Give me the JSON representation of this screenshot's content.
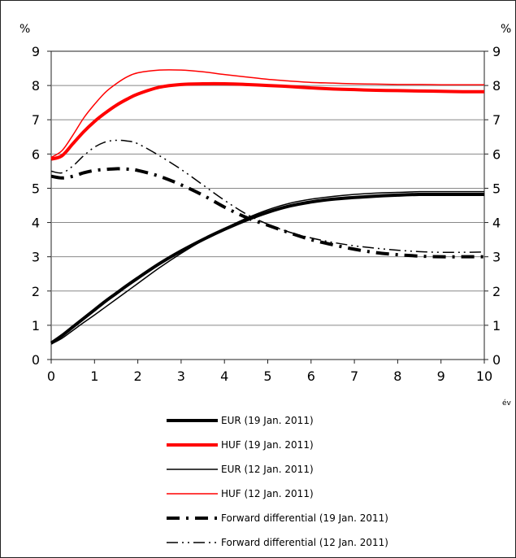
{
  "chart_data": {
    "type": "line",
    "y_unit_left": "%",
    "y_unit_right": "%",
    "x_unit": "év",
    "xlim": [
      0,
      10
    ],
    "ylim": [
      0,
      9
    ],
    "x_ticks": [
      "0",
      "1",
      "2",
      "3",
      "4",
      "5",
      "6",
      "7",
      "8",
      "9",
      "10"
    ],
    "y_ticks": [
      "0",
      "1",
      "2",
      "3",
      "4",
      "5",
      "6",
      "7",
      "8",
      "9"
    ],
    "grid": "horizontal",
    "legend_position": "bottom",
    "x": [
      0,
      0.25,
      0.5,
      0.75,
      1,
      1.25,
      1.5,
      1.75,
      2,
      2.5,
      3,
      3.5,
      4,
      4.5,
      5,
      5.5,
      6,
      6.5,
      7,
      7.5,
      8,
      8.5,
      9,
      9.5,
      10
    ],
    "series": [
      {
        "name": "EUR (19 Jan. 2011)",
        "color": "#000000",
        "style": "thick-solid",
        "values": [
          0.48,
          0.7,
          0.95,
          1.2,
          1.45,
          1.7,
          1.93,
          2.16,
          2.38,
          2.8,
          3.17,
          3.5,
          3.8,
          4.07,
          4.3,
          4.48,
          4.6,
          4.68,
          4.73,
          4.77,
          4.8,
          4.82,
          4.82,
          4.82,
          4.82
        ]
      },
      {
        "name": "HUF (19 Jan. 2011)",
        "color": "#ff0000",
        "style": "thick-solid",
        "values": [
          5.85,
          5.95,
          6.3,
          6.65,
          6.95,
          7.2,
          7.42,
          7.6,
          7.75,
          7.95,
          8.03,
          8.05,
          8.05,
          8.03,
          8.0,
          7.97,
          7.93,
          7.9,
          7.88,
          7.86,
          7.85,
          7.84,
          7.83,
          7.82,
          7.82
        ]
      },
      {
        "name": "EUR (12 Jan. 2011)",
        "color": "#000000",
        "style": "thin-solid",
        "values": [
          0.45,
          0.62,
          0.85,
          1.08,
          1.3,
          1.53,
          1.76,
          1.99,
          2.22,
          2.68,
          3.1,
          3.48,
          3.82,
          4.12,
          4.37,
          4.56,
          4.68,
          4.76,
          4.82,
          4.86,
          4.88,
          4.9,
          4.9,
          4.9,
          4.9
        ]
      },
      {
        "name": "HUF (12 Jan. 2011)",
        "color": "#ff0000",
        "style": "thin-solid",
        "values": [
          5.9,
          6.1,
          6.55,
          7.05,
          7.45,
          7.8,
          8.05,
          8.25,
          8.37,
          8.45,
          8.45,
          8.4,
          8.32,
          8.25,
          8.18,
          8.13,
          8.09,
          8.07,
          8.05,
          8.04,
          8.03,
          8.03,
          8.02,
          8.02,
          8.02
        ]
      },
      {
        "name": "Forward differential (19 Jan. 2011)",
        "color": "#000000",
        "style": "thick-dashdot",
        "values": [
          5.35,
          5.3,
          5.35,
          5.45,
          5.52,
          5.55,
          5.57,
          5.56,
          5.52,
          5.35,
          5.1,
          4.8,
          4.45,
          4.15,
          3.92,
          3.7,
          3.5,
          3.35,
          3.22,
          3.12,
          3.06,
          3.02,
          3.0,
          3.0,
          3.0
        ]
      },
      {
        "name": "Forward differential (12 Jan. 2011)",
        "color": "#000000",
        "style": "thin-dashdotdot",
        "values": [
          5.5,
          5.45,
          5.65,
          5.95,
          6.2,
          6.35,
          6.4,
          6.38,
          6.3,
          5.95,
          5.55,
          5.1,
          4.65,
          4.25,
          3.95,
          3.72,
          3.55,
          3.42,
          3.32,
          3.25,
          3.19,
          3.15,
          3.13,
          3.13,
          3.14
        ]
      }
    ]
  }
}
